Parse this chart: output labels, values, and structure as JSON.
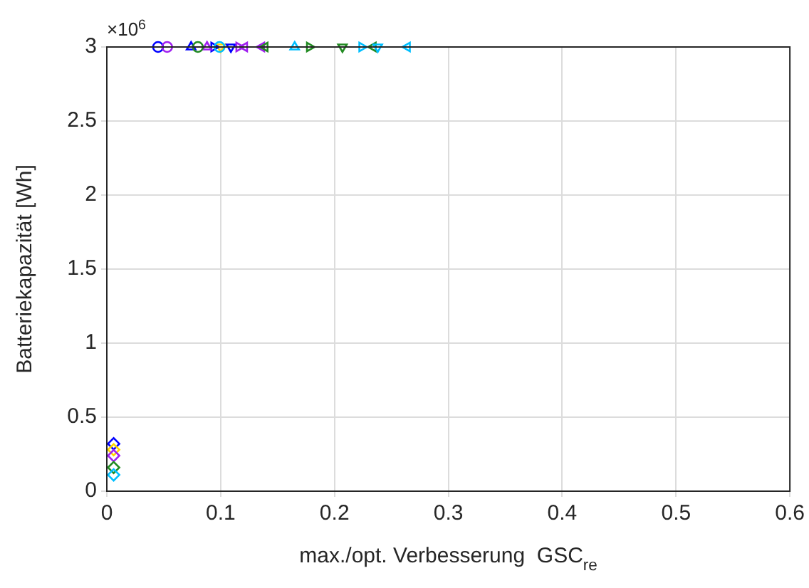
{
  "chart_data": {
    "type": "scatter",
    "xlabel": "max./opt. Verbesserung  GSC$_{re}$",
    "ylabel": "Batteriekapazität [Wh]",
    "annotations": [
      "×10$^{6}$"
    ],
    "xlim": [
      0,
      0.6
    ],
    "xticks": [
      0,
      0.1,
      0.2,
      0.3,
      0.4,
      0.5,
      0.6
    ],
    "ylim": [
      0,
      3
    ],
    "yticks": [
      0,
      0.5,
      1,
      1.5,
      2,
      2.5,
      3
    ],
    "grid": true,
    "legend": false,
    "series": [
      {
        "marker": "circle",
        "x": [
          0.045,
          0.053,
          0.08,
          0.099
        ],
        "values": [
          3,
          3,
          3,
          3
        ],
        "colors": [
          "#0000ff",
          "#a020f0",
          "#228b22",
          "#00bfff"
        ]
      },
      {
        "marker": "triangle",
        "x": [
          0.074,
          0.088,
          0.165
        ],
        "values": [
          3,
          3,
          3
        ],
        "colors": [
          "#0000ff",
          "#a020f0",
          "#00bfff"
        ]
      },
      {
        "marker": "triangle-right",
        "x": [
          0.094,
          0.116,
          0.178,
          0.224
        ],
        "values": [
          3,
          3,
          3,
          3
        ],
        "colors": [
          "#0000ff",
          "#a020f0",
          "#228b22",
          "#00bfff"
        ]
      },
      {
        "marker": "triangle-down",
        "x": [
          0.1,
          0.109,
          0.207,
          0.238
        ],
        "values": [
          3,
          3,
          3,
          3
        ],
        "colors": [
          "#ffd700",
          "#0000ff",
          "#228b22",
          "#00bfff"
        ]
      },
      {
        "marker": "triangle-left",
        "x": [
          0.121,
          0.136,
          0.139,
          0.234,
          0.264
        ],
        "values": [
          3,
          3,
          3,
          3,
          3
        ],
        "colors": [
          "#a020f0",
          "#a020f0",
          "#228b22",
          "#228b22",
          "#00bfff"
        ]
      },
      {
        "marker": "diamond",
        "x": [
          0.006,
          0.006,
          0.006,
          0.006,
          0.006
        ],
        "values": [
          0.32,
          0.28,
          0.24,
          0.16,
          0.11
        ],
        "colors": [
          "#0000ff",
          "#ffd700",
          "#a020f0",
          "#228b22",
          "#00bfff"
        ]
      }
    ]
  }
}
